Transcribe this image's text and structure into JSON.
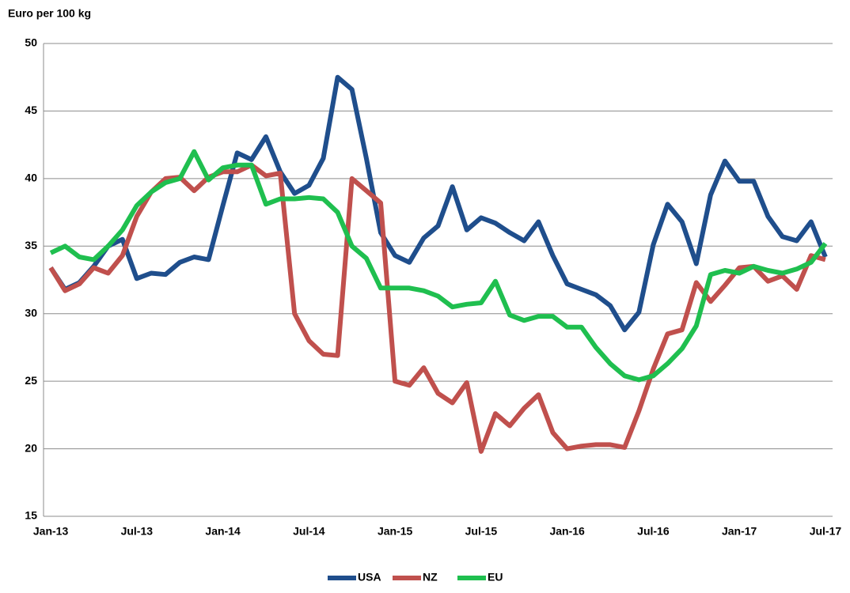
{
  "chart_data": {
    "type": "line",
    "title": "Euro per 100 kg",
    "categories": [
      "Jan-13",
      null,
      null,
      null,
      null,
      null,
      "Jul-13",
      null,
      null,
      null,
      null,
      null,
      "Jan-14",
      null,
      null,
      null,
      null,
      null,
      "Jul-14",
      null,
      null,
      null,
      null,
      null,
      "Jan-15",
      null,
      null,
      null,
      null,
      null,
      "Jul-15",
      null,
      null,
      null,
      null,
      null,
      "Jan-16",
      null,
      null,
      null,
      null,
      null,
      "Jul-16",
      null,
      null,
      null,
      null,
      null,
      "Jan-17",
      null,
      null,
      null,
      null,
      null,
      "Jul-17"
    ],
    "series": [
      {
        "name": "USA",
        "color": "#1f4e8c",
        "values": [
          33.4,
          31.8,
          32.3,
          33.5,
          35,
          35.5,
          32.6,
          33,
          32.9,
          33.8,
          34.2,
          34,
          38,
          41.9,
          41.4,
          43.1,
          40.5,
          38.9,
          39.5,
          41.5,
          47.5,
          46.6,
          41.5,
          36,
          34.3,
          33.8,
          35.6,
          36.5,
          39.4,
          36.2,
          37.1,
          36.7,
          36,
          35.4,
          36.8,
          34.3,
          32.2,
          31.8,
          31.4,
          30.6,
          28.8,
          30.1,
          35.1,
          38.1,
          36.8,
          33.7,
          38.8,
          41.3,
          39.8,
          39.8,
          37.2,
          35.7,
          35.4,
          36.8,
          34.2
        ]
      },
      {
        "name": "NZ",
        "color": "#c0504d",
        "values": [
          33.4,
          31.7,
          32.2,
          33.4,
          33,
          34.3,
          37.2,
          39,
          40,
          40.1,
          39.1,
          40.1,
          40.5,
          40.5,
          41,
          40.2,
          40.4,
          30,
          28,
          27,
          26.9,
          40,
          39.1,
          38.2,
          25,
          24.7,
          26,
          24.1,
          23.4,
          24.9,
          19.8,
          22.6,
          21.7,
          23,
          24,
          21.2,
          20,
          20.2,
          20.3,
          20.3,
          20.1,
          22.8,
          25.9,
          28.5,
          28.8,
          32.3,
          30.9,
          32.1,
          33.4,
          33.5,
          32.4,
          32.8,
          31.8,
          34.3,
          34
        ]
      },
      {
        "name": "EU",
        "color": "#1fbf4f",
        "values": [
          34.5,
          35,
          34.2,
          34,
          35,
          36.2,
          38,
          39,
          39.7,
          40,
          42,
          39.9,
          40.8,
          41,
          41,
          38.1,
          38.5,
          38.5,
          38.6,
          38.5,
          37.5,
          35,
          34.1,
          31.9,
          31.9,
          31.9,
          31.7,
          31.3,
          30.5,
          30.7,
          30.8,
          32.4,
          29.9,
          29.5,
          29.8,
          29.8,
          29,
          29,
          27.5,
          26.3,
          25.4,
          25.1,
          25.4,
          26.3,
          27.4,
          29.1,
          32.9,
          33.2,
          33,
          33.5,
          33.2,
          33,
          33.3,
          33.8,
          35.2
        ]
      }
    ],
    "ylim": [
      15,
      50
    ],
    "yticks": [
      15,
      20,
      25,
      30,
      35,
      40,
      45,
      50
    ],
    "grid": true,
    "legend": "bottom"
  }
}
